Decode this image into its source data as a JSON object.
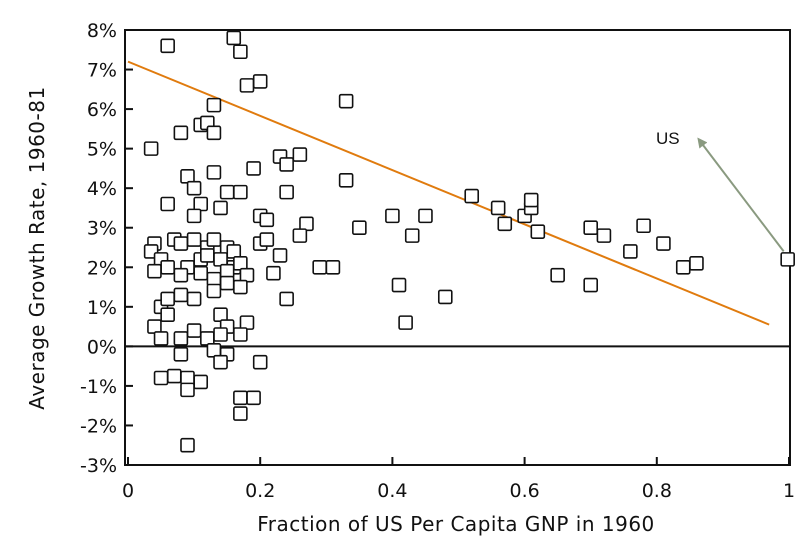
{
  "chart_data": {
    "type": "scatter",
    "title": "",
    "xlabel": "Fraction of US Per Capita GNP in 1960",
    "ylabel": "Average Growth Rate, 1960-81",
    "xlim": [
      0,
      1
    ],
    "ylim": [
      -3,
      8
    ],
    "x_ticks": [
      {
        "value": 0,
        "label": "0"
      },
      {
        "value": 0.2,
        "label": "0.2"
      },
      {
        "value": 0.4,
        "label": "0.4"
      },
      {
        "value": 0.6,
        "label": "0.6"
      },
      {
        "value": 0.8,
        "label": "0.8"
      },
      {
        "value": 1,
        "label": "1"
      }
    ],
    "y_ticks": [
      {
        "value": 8,
        "label": "8%"
      },
      {
        "value": 7,
        "label": "7%"
      },
      {
        "value": 6,
        "label": "6%"
      },
      {
        "value": 5,
        "label": "5%"
      },
      {
        "value": 4,
        "label": "4%"
      },
      {
        "value": 3,
        "label": "3%"
      },
      {
        "value": 2,
        "label": "2%"
      },
      {
        "value": 1,
        "label": "1%"
      },
      {
        "value": 0,
        "label": "0%"
      },
      {
        "value": -1,
        "label": "-1%"
      },
      {
        "value": -2,
        "label": "-2%"
      },
      {
        "value": -3,
        "label": "-3%"
      }
    ],
    "zero_line": 0,
    "trend_line": {
      "color": "#E07B0E",
      "x": [
        0,
        0.97
      ],
      "y": [
        7.2,
        0.55
      ]
    },
    "annotation": {
      "text": "US",
      "color": "#8A9A80",
      "from": [
        0.998,
        2.2
      ],
      "to": [
        0.865,
        5.2
      ]
    },
    "points": [
      [
        0.06,
        7.6
      ],
      [
        0.16,
        7.8
      ],
      [
        0.17,
        7.45
      ],
      [
        0.18,
        6.6
      ],
      [
        0.2,
        6.7
      ],
      [
        0.13,
        6.1
      ],
      [
        0.33,
        6.2
      ],
      [
        0.11,
        5.6
      ],
      [
        0.12,
        5.65
      ],
      [
        0.08,
        5.4
      ],
      [
        0.13,
        5.4
      ],
      [
        0.035,
        5.0
      ],
      [
        0.23,
        4.8
      ],
      [
        0.26,
        4.85
      ],
      [
        0.09,
        4.3
      ],
      [
        0.13,
        4.4
      ],
      [
        0.24,
        4.6
      ],
      [
        0.19,
        4.5
      ],
      [
        0.33,
        4.2
      ],
      [
        0.1,
        4.0
      ],
      [
        0.15,
        3.9
      ],
      [
        0.17,
        3.9
      ],
      [
        0.24,
        3.9
      ],
      [
        0.06,
        3.6
      ],
      [
        0.11,
        3.6
      ],
      [
        0.14,
        3.5
      ],
      [
        0.2,
        3.3
      ],
      [
        0.21,
        3.2
      ],
      [
        0.1,
        3.3
      ],
      [
        0.27,
        3.1
      ],
      [
        0.35,
        3.0
      ],
      [
        0.4,
        3.3
      ],
      [
        0.45,
        3.3
      ],
      [
        0.43,
        2.8
      ],
      [
        0.26,
        2.8
      ],
      [
        0.52,
        3.8
      ],
      [
        0.56,
        3.5
      ],
      [
        0.57,
        3.1
      ],
      [
        0.6,
        3.3
      ],
      [
        0.61,
        3.5
      ],
      [
        0.61,
        3.7
      ],
      [
        0.62,
        2.9
      ],
      [
        0.7,
        3.0
      ],
      [
        0.72,
        2.8
      ],
      [
        0.78,
        3.05
      ],
      [
        0.76,
        2.4
      ],
      [
        0.81,
        2.6
      ],
      [
        0.84,
        2.0
      ],
      [
        0.86,
        2.1
      ],
      [
        0.65,
        1.8
      ],
      [
        0.7,
        1.55
      ],
      [
        0.04,
        2.6
      ],
      [
        0.035,
        2.4
      ],
      [
        0.07,
        2.7
      ],
      [
        0.08,
        2.6
      ],
      [
        0.1,
        2.7
      ],
      [
        0.12,
        2.5
      ],
      [
        0.13,
        2.7
      ],
      [
        0.15,
        2.5
      ],
      [
        0.16,
        2.4
      ],
      [
        0.2,
        2.6
      ],
      [
        0.21,
        2.7
      ],
      [
        0.23,
        2.3
      ],
      [
        0.05,
        2.2
      ],
      [
        0.06,
        2.0
      ],
      [
        0.09,
        2.0
      ],
      [
        0.11,
        2.2
      ],
      [
        0.12,
        2.3
      ],
      [
        0.14,
        2.2
      ],
      [
        0.16,
        2.0
      ],
      [
        0.17,
        2.1
      ],
      [
        0.04,
        1.9
      ],
      [
        0.08,
        1.8
      ],
      [
        0.11,
        1.85
      ],
      [
        0.13,
        1.7
      ],
      [
        0.15,
        1.9
      ],
      [
        0.18,
        1.8
      ],
      [
        0.22,
        1.85
      ],
      [
        0.29,
        2.0
      ],
      [
        0.31,
        2.0
      ],
      [
        0.05,
        1.0
      ],
      [
        0.06,
        1.2
      ],
      [
        0.08,
        1.3
      ],
      [
        0.1,
        1.2
      ],
      [
        0.13,
        1.4
      ],
      [
        0.15,
        1.6
      ],
      [
        0.17,
        1.5
      ],
      [
        0.24,
        1.2
      ],
      [
        0.41,
        1.55
      ],
      [
        0.48,
        1.25
      ],
      [
        0.42,
        0.6
      ],
      [
        0.04,
        0.5
      ],
      [
        0.06,
        0.8
      ],
      [
        0.08,
        0.2
      ],
      [
        0.1,
        0.4
      ],
      [
        0.14,
        0.8
      ],
      [
        0.15,
        0.5
      ],
      [
        0.18,
        0.6
      ],
      [
        0.05,
        0.2
      ],
      [
        0.12,
        0.2
      ],
      [
        0.14,
        0.3
      ],
      [
        0.17,
        0.3
      ],
      [
        0.08,
        -0.2
      ],
      [
        0.13,
        -0.1
      ],
      [
        0.15,
        -0.2
      ],
      [
        0.2,
        -0.4
      ],
      [
        0.14,
        -0.4
      ],
      [
        0.05,
        -0.8
      ],
      [
        0.07,
        -0.75
      ],
      [
        0.09,
        -0.8
      ],
      [
        0.11,
        -0.9
      ],
      [
        0.09,
        -1.1
      ],
      [
        0.17,
        -1.3
      ],
      [
        0.19,
        -1.3
      ],
      [
        0.17,
        -1.7
      ],
      [
        0.09,
        -2.5
      ],
      [
        0.998,
        2.2
      ]
    ]
  }
}
